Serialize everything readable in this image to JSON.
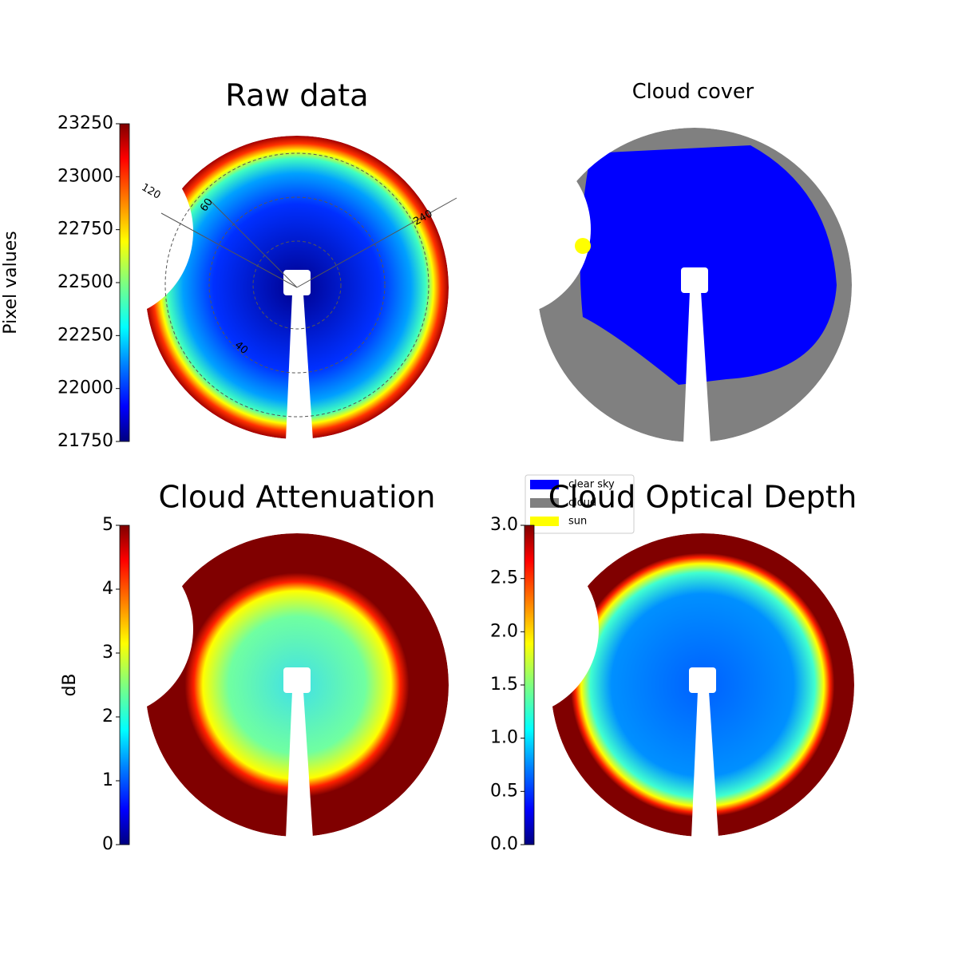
{
  "chart_data": [
    {
      "type": "image",
      "title": "Raw data",
      "colormap": "jet",
      "colorbar": {
        "label": "Pixel values",
        "lim": [
          21750,
          23250
        ],
        "ticks": [
          21750,
          22000,
          22250,
          22500,
          22750,
          23000,
          23250
        ]
      },
      "annotations": [
        "120",
        "60",
        "240",
        "40"
      ]
    },
    {
      "type": "classes",
      "title": "Cloud cover",
      "legend": [
        {
          "name": "clear sky",
          "color": "#0000ff"
        },
        {
          "name": "cloud",
          "color": "#808080"
        },
        {
          "name": "sun",
          "color": "#ffff00"
        }
      ]
    },
    {
      "type": "image",
      "title": "Cloud Attenuation",
      "colormap": "jet",
      "colorbar": {
        "label": "dB",
        "lim": [
          0,
          5
        ],
        "ticks": [
          0,
          1,
          2,
          3,
          4,
          5
        ]
      }
    },
    {
      "type": "image",
      "title": "Cloud Optical Depth",
      "colormap": "jet",
      "colorbar": {
        "lim": [
          0,
          3
        ],
        "ticks": [
          {
            "value": 0,
            "label": "0.0"
          },
          0.5,
          {
            "value": 1,
            "label": "1.0"
          },
          1.5,
          {
            "value": 2,
            "label": "2.0"
          },
          2.5,
          {
            "value": 3,
            "label": "3.0"
          }
        ]
      }
    }
  ]
}
